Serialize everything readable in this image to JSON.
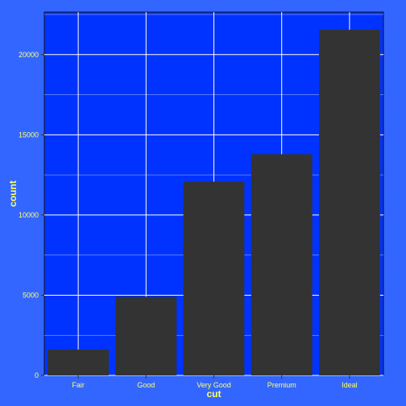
{
  "chart_data": {
    "type": "bar",
    "title": "",
    "xlabel": "cut",
    "ylabel": "count",
    "categories": [
      "Fair",
      "Good",
      "Very Good",
      "Premium",
      "Ideal"
    ],
    "values": [
      1610,
      4906,
      12082,
      13791,
      21551
    ],
    "ylim": [
      0,
      22650
    ],
    "yticks": [
      0,
      5000,
      10000,
      15000,
      20000
    ],
    "ytick_labels": [
      "0",
      "5000",
      "10000",
      "15000",
      "20000"
    ],
    "grid": true,
    "legend": "none",
    "colors": {
      "background": "#3366ff",
      "panel": "#0033ff",
      "bar": "#333333",
      "grid_major": "#ffffff",
      "text": "#ffff66"
    }
  }
}
